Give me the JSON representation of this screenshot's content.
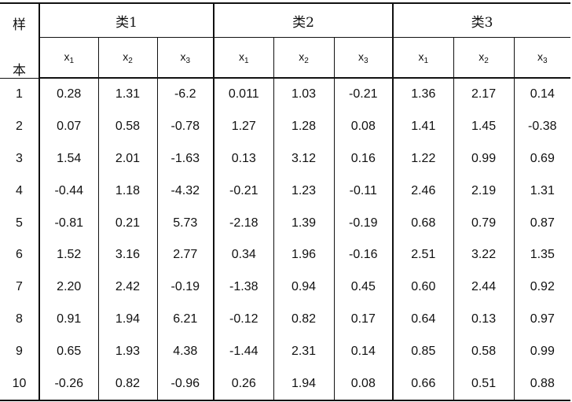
{
  "table": {
    "sample_label_top": "样",
    "sample_label_bottom": "本",
    "groups": [
      "类1",
      "类2",
      "类3"
    ],
    "variables": [
      {
        "base": "x",
        "sub": "1"
      },
      {
        "base": "x",
        "sub": "2"
      },
      {
        "base": "x",
        "sub": "3"
      }
    ],
    "rows": [
      {
        "sample": "1",
        "values": [
          "0.28",
          "1.31",
          "-6.2",
          "0.011",
          "1.03",
          "-0.21",
          "1.36",
          "2.17",
          "0.14"
        ]
      },
      {
        "sample": "2",
        "values": [
          "0.07",
          "0.58",
          "-0.78",
          "1.27",
          "1.28",
          "0.08",
          "1.41",
          "1.45",
          "-0.38"
        ]
      },
      {
        "sample": "3",
        "values": [
          "1.54",
          "2.01",
          "-1.63",
          "0.13",
          "3.12",
          "0.16",
          "1.22",
          "0.99",
          "0.69"
        ]
      },
      {
        "sample": "4",
        "values": [
          "-0.44",
          "1.18",
          "-4.32",
          "-0.21",
          "1.23",
          "-0.11",
          "2.46",
          "2.19",
          "1.31"
        ]
      },
      {
        "sample": "5",
        "values": [
          "-0.81",
          "0.21",
          "5.73",
          "-2.18",
          "1.39",
          "-0.19",
          "0.68",
          "0.79",
          "0.87"
        ]
      },
      {
        "sample": "6",
        "values": [
          "1.52",
          "3.16",
          "2.77",
          "0.34",
          "1.96",
          "-0.16",
          "2.51",
          "3.22",
          "1.35"
        ]
      },
      {
        "sample": "7",
        "values": [
          "2.20",
          "2.42",
          "-0.19",
          "-1.38",
          "0.94",
          "0.45",
          "0.60",
          "2.44",
          "0.92"
        ]
      },
      {
        "sample": "8",
        "values": [
          "0.91",
          "1.94",
          "6.21",
          "-0.12",
          "0.82",
          "0.17",
          "0.64",
          "0.13",
          "0.97"
        ]
      },
      {
        "sample": "9",
        "values": [
          "0.65",
          "1.93",
          "4.38",
          "-1.44",
          "2.31",
          "0.14",
          "0.85",
          "0.58",
          "0.99"
        ]
      },
      {
        "sample": "10",
        "values": [
          "-0.26",
          "0.82",
          "-0.96",
          "0.26",
          "1.94",
          "0.08",
          "0.66",
          "0.51",
          "0.88"
        ]
      }
    ]
  }
}
